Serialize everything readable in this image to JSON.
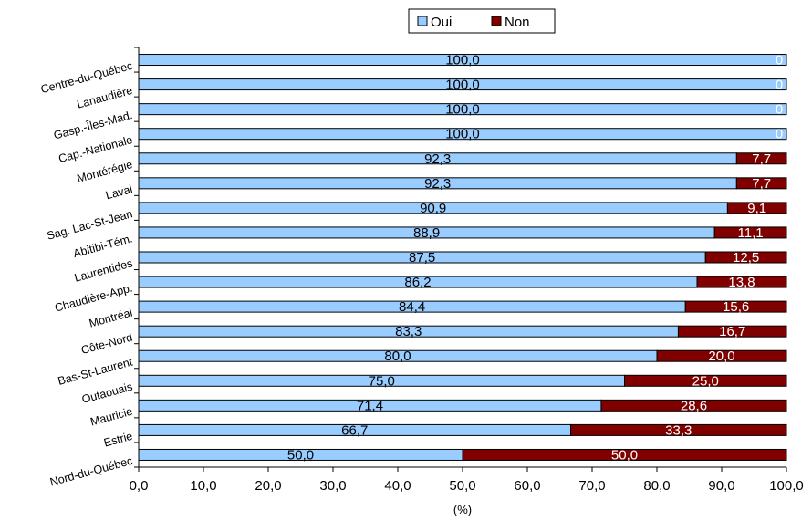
{
  "chart_data": {
    "type": "bar",
    "orientation": "horizontal",
    "stacked": true,
    "categories": [
      "Centre-du-Québec",
      "Lanaudière",
      "Gasp.-Îles-Mad.",
      "Cap.-Nationale",
      "Montérégie",
      "Laval",
      "Sag. Lac-St-Jean",
      "Abitibi-Tém.",
      "Laurentides",
      "Chaudière-App.",
      "Montréal",
      "Côte-Nord",
      "Bas-St-Laurent",
      "Outaouais",
      "Mauricie",
      "Estrie",
      "Nord-du-Québec"
    ],
    "series": [
      {
        "name": "Oui",
        "color": "#99ccff",
        "values": [
          100.0,
          100.0,
          100.0,
          100.0,
          92.3,
          92.3,
          90.9,
          88.9,
          87.5,
          86.2,
          84.4,
          83.3,
          80.0,
          75.0,
          71.4,
          66.7,
          50.0
        ],
        "labels": [
          "100,0",
          "100,0",
          "100,0",
          "100,0",
          "92,3",
          "92,3",
          "90,9",
          "88,9",
          "87,5",
          "86,2",
          "84,4",
          "83,3",
          "80,0",
          "75,0",
          "71,4",
          "66,7",
          "50,0"
        ]
      },
      {
        "name": "Non",
        "color": "#800000",
        "values": [
          0,
          0,
          0,
          0,
          7.7,
          7.7,
          9.1,
          11.1,
          12.5,
          13.8,
          15.6,
          16.7,
          20.0,
          25.0,
          28.6,
          33.3,
          50.0
        ],
        "labels": [
          "0",
          "0",
          "0",
          "0",
          "7,7",
          "7,7",
          "9,1",
          "11,1",
          "12,5",
          "13,8",
          "15,6",
          "16,7",
          "20,0",
          "25,0",
          "28,6",
          "33,3",
          "50,0"
        ]
      }
    ],
    "xlabel": "(%)",
    "xlim": [
      0,
      100
    ],
    "xticks": [
      "0,0",
      "10,0",
      "20,0",
      "30,0",
      "40,0",
      "50,0",
      "60,0",
      "70,0",
      "80,0",
      "90,0",
      "100,0"
    ],
    "legend": {
      "position": "top",
      "entries": [
        "Oui",
        "Non"
      ]
    },
    "grid": false
  }
}
